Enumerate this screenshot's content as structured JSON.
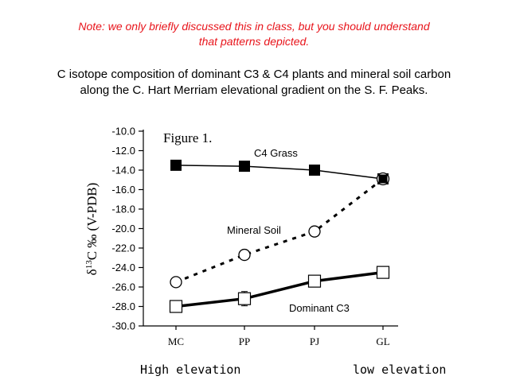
{
  "note": {
    "line1": "Note: we only briefly discussed this in class, but you should understand",
    "line2": "that patterns depicted."
  },
  "heading": {
    "line1": "C isotope composition of dominant C3 & C4 plants and mineral soil carbon",
    "line2": "along the C. Hart Merriam elevational gradient on the S. F. Peaks."
  },
  "chart_data": {
    "type": "line",
    "title": "Figure 1.",
    "ylabel": "δ13C ‰ (V-PDB)",
    "ylabel_main": "δ",
    "ylabel_sup": "13",
    "ylabel_rest": "C ‰ (V-PDB)",
    "ylim": [
      -30.0,
      -10.0
    ],
    "yticks": [
      "-10.0",
      "-12.0",
      "-14.0",
      "-16.0",
      "-18.0",
      "-20.0",
      "-22.0",
      "-24.0",
      "-26.0",
      "-28.0",
      "-30.0"
    ],
    "categories": [
      "MC",
      "PP",
      "PJ",
      "GL"
    ],
    "series": [
      {
        "name": "C4 Grass",
        "values": [
          -13.5,
          -13.6,
          -14.0,
          -14.9
        ],
        "style": "thin-solid",
        "marker": "filled-square"
      },
      {
        "name": "Mineral Soil",
        "values": [
          -25.5,
          -22.7,
          -20.3,
          -14.9
        ],
        "style": "dashed",
        "marker": "open-circle"
      },
      {
        "name": "Dominant C3",
        "values": [
          -28.0,
          -27.2,
          -25.4,
          -24.5
        ],
        "style": "thick-solid",
        "marker": "open-square"
      }
    ]
  },
  "footer": {
    "left": "High elevation",
    "right": "low elevation"
  }
}
